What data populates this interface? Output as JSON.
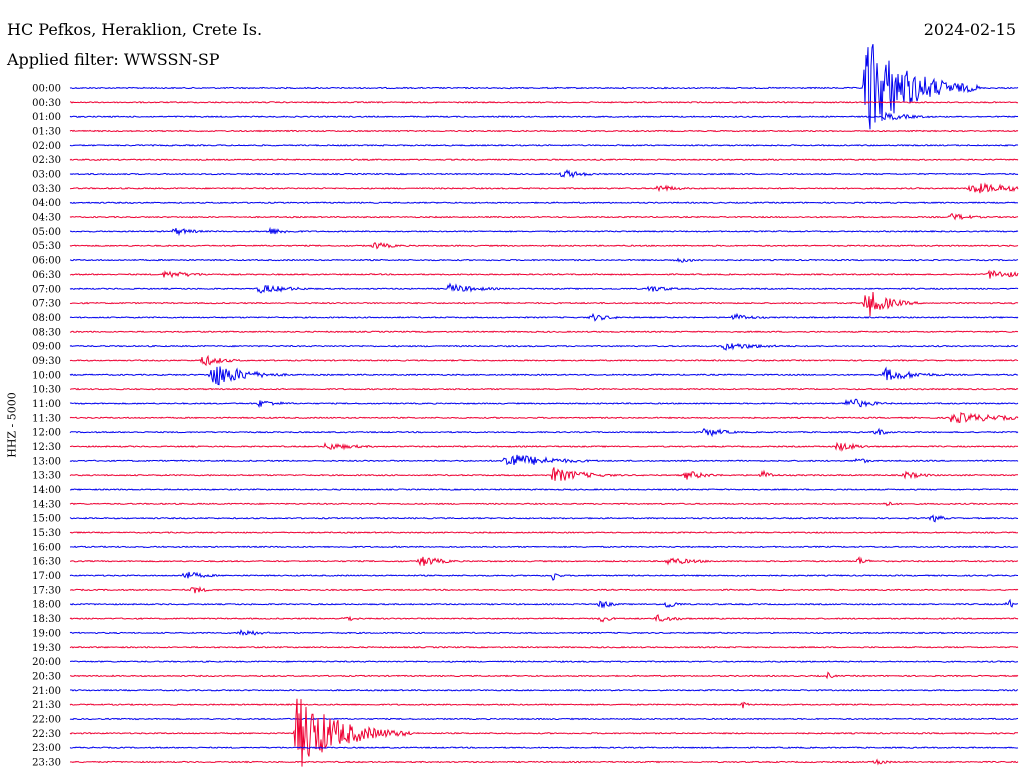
{
  "header": {
    "station": "HC Pefkos, Heraklion, Crete Is.",
    "filter": "Applied filter: WWSSN-SP",
    "date": "2024-02-15"
  },
  "chart_data": {
    "type": "line",
    "channel_label": "HHZ - 5000",
    "rows": [
      "00:00",
      "00:30",
      "01:00",
      "01:30",
      "02:00",
      "02:30",
      "03:00",
      "03:30",
      "04:00",
      "04:30",
      "05:00",
      "05:30",
      "06:00",
      "06:30",
      "07:00",
      "07:30",
      "08:00",
      "08:30",
      "09:00",
      "09:30",
      "10:00",
      "10:30",
      "11:00",
      "11:30",
      "12:00",
      "12:30",
      "13:00",
      "13:30",
      "14:00",
      "14:30",
      "15:00",
      "15:30",
      "16:00",
      "16:30",
      "17:00",
      "17:30",
      "18:00",
      "18:30",
      "19:00",
      "19:30",
      "20:00",
      "20:30",
      "21:00",
      "21:30",
      "22:00",
      "22:30",
      "23:00",
      "23:30"
    ],
    "colors": [
      "#0000ee",
      "#ee0033"
    ],
    "events": [
      {
        "row": 0,
        "t": 0.84,
        "amp": 55,
        "dur": 0.04
      },
      {
        "row": 2,
        "t": 0.86,
        "amp": 4,
        "dur": 0.03
      },
      {
        "row": 6,
        "t": 0.52,
        "amp": 5,
        "dur": 0.02
      },
      {
        "row": 7,
        "t": 0.62,
        "amp": 4,
        "dur": 0.02
      },
      {
        "row": 7,
        "t": 0.95,
        "amp": 6,
        "dur": 0.05
      },
      {
        "row": 9,
        "t": 0.93,
        "amp": 4,
        "dur": 0.02
      },
      {
        "row": 10,
        "t": 0.11,
        "amp": 4,
        "dur": 0.02
      },
      {
        "row": 10,
        "t": 0.21,
        "amp": 4,
        "dur": 0.02
      },
      {
        "row": 11,
        "t": 0.32,
        "amp": 4,
        "dur": 0.02
      },
      {
        "row": 12,
        "t": 0.64,
        "amp": 3,
        "dur": 0.02
      },
      {
        "row": 13,
        "t": 0.1,
        "amp": 4,
        "dur": 0.03
      },
      {
        "row": 13,
        "t": 0.97,
        "amp": 5,
        "dur": 0.03
      },
      {
        "row": 14,
        "t": 0.2,
        "amp": 5,
        "dur": 0.03
      },
      {
        "row": 14,
        "t": 0.4,
        "amp": 5,
        "dur": 0.03
      },
      {
        "row": 14,
        "t": 0.61,
        "amp": 4,
        "dur": 0.02
      },
      {
        "row": 15,
        "t": 0.84,
        "amp": 16,
        "dur": 0.02
      },
      {
        "row": 16,
        "t": 0.55,
        "amp": 4,
        "dur": 0.02
      },
      {
        "row": 16,
        "t": 0.7,
        "amp": 4,
        "dur": 0.02
      },
      {
        "row": 18,
        "t": 0.69,
        "amp": 4,
        "dur": 0.04
      },
      {
        "row": 19,
        "t": 0.14,
        "amp": 6,
        "dur": 0.02
      },
      {
        "row": 20,
        "t": 0.15,
        "amp": 14,
        "dur": 0.03
      },
      {
        "row": 20,
        "t": 0.18,
        "amp": 6,
        "dur": 0.02
      },
      {
        "row": 20,
        "t": 0.86,
        "amp": 7,
        "dur": 0.03
      },
      {
        "row": 22,
        "t": 0.2,
        "amp": 4,
        "dur": 0.02
      },
      {
        "row": 22,
        "t": 0.82,
        "amp": 7,
        "dur": 0.02
      },
      {
        "row": 23,
        "t": 0.93,
        "amp": 6,
        "dur": 0.05
      },
      {
        "row": 24,
        "t": 0.67,
        "amp": 5,
        "dur": 0.02
      },
      {
        "row": 24,
        "t": 0.85,
        "amp": 5,
        "dur": 0.01
      },
      {
        "row": 25,
        "t": 0.27,
        "amp": 4,
        "dur": 0.03
      },
      {
        "row": 25,
        "t": 0.81,
        "amp": 5,
        "dur": 0.02
      },
      {
        "row": 26,
        "t": 0.46,
        "amp": 9,
        "dur": 0.04
      },
      {
        "row": 26,
        "t": 0.83,
        "amp": 4,
        "dur": 0.01
      },
      {
        "row": 27,
        "t": 0.51,
        "amp": 8,
        "dur": 0.03
      },
      {
        "row": 27,
        "t": 0.65,
        "amp": 5,
        "dur": 0.02
      },
      {
        "row": 27,
        "t": 0.73,
        "amp": 5,
        "dur": 0.01
      },
      {
        "row": 27,
        "t": 0.88,
        "amp": 4,
        "dur": 0.02
      },
      {
        "row": 29,
        "t": 0.86,
        "amp": 3,
        "dur": 0.01
      },
      {
        "row": 30,
        "t": 0.91,
        "amp": 5,
        "dur": 0.01
      },
      {
        "row": 33,
        "t": 0.37,
        "amp": 6,
        "dur": 0.02
      },
      {
        "row": 33,
        "t": 0.63,
        "amp": 4,
        "dur": 0.03
      },
      {
        "row": 33,
        "t": 0.83,
        "amp": 5,
        "dur": 0.01
      },
      {
        "row": 34,
        "t": 0.12,
        "amp": 5,
        "dur": 0.02
      },
      {
        "row": 34,
        "t": 0.51,
        "amp": 6,
        "dur": 0.005
      },
      {
        "row": 35,
        "t": 0.13,
        "amp": 5,
        "dur": 0.01
      },
      {
        "row": 36,
        "t": 0.56,
        "amp": 5,
        "dur": 0.01
      },
      {
        "row": 36,
        "t": 0.63,
        "amp": 5,
        "dur": 0.01
      },
      {
        "row": 36,
        "t": 0.99,
        "amp": 5,
        "dur": 0.01
      },
      {
        "row": 37,
        "t": 0.29,
        "amp": 4,
        "dur": 0.01
      },
      {
        "row": 37,
        "t": 0.56,
        "amp": 4,
        "dur": 0.01
      },
      {
        "row": 37,
        "t": 0.62,
        "amp": 4,
        "dur": 0.02
      },
      {
        "row": 38,
        "t": 0.18,
        "amp": 4,
        "dur": 0.02
      },
      {
        "row": 41,
        "t": 0.8,
        "amp": 4,
        "dur": 0.005
      },
      {
        "row": 43,
        "t": 0.71,
        "amp": 4,
        "dur": 0.005
      },
      {
        "row": 45,
        "t": 0.24,
        "amp": 40,
        "dur": 0.04
      },
      {
        "row": 47,
        "t": 0.85,
        "amp": 4,
        "dur": 0.01
      }
    ]
  }
}
